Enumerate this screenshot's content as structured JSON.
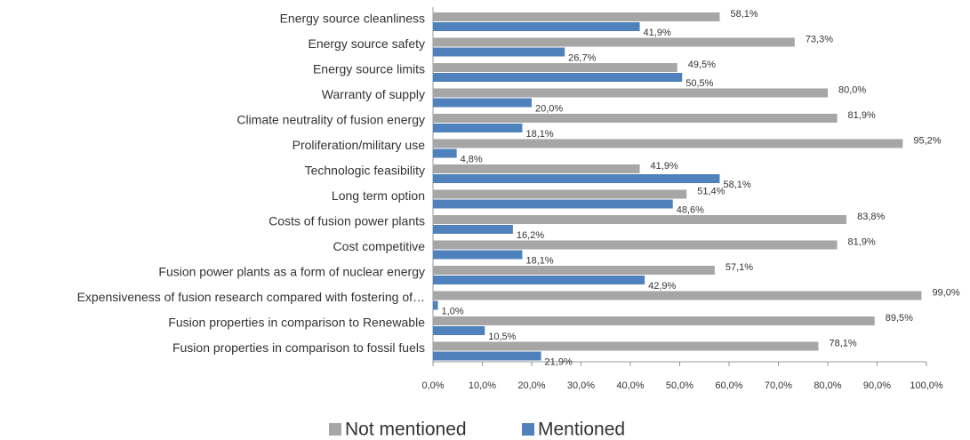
{
  "chart_data": {
    "type": "bar",
    "orientation": "horizontal",
    "categories": [
      "Energy source cleanliness",
      "Energy source safety",
      "Energy source limits",
      "Warranty of supply",
      "Climate neutrality of fusion energy",
      "Proliferation/military use",
      "Technologic feasibility",
      "Long term option",
      "Costs of fusion power plants",
      "Cost competitive",
      "Fusion power plants as a form of nuclear energy",
      "Expensiveness of fusion research compared with fostering of…",
      "Fusion properties in comparison to Renewable",
      "Fusion properties in comparison to fossil fuels"
    ],
    "series": [
      {
        "name": "Not mentioned",
        "color": "#a6a6a6",
        "values": [
          58.1,
          73.3,
          49.5,
          80.0,
          81.9,
          95.2,
          41.9,
          51.4,
          83.8,
          81.9,
          57.1,
          99.0,
          89.5,
          78.1
        ],
        "value_labels": [
          "58,1%",
          "73,3%",
          "49,5%",
          "80,0%",
          "81,9%",
          "95,2%",
          "41,9%",
          "51,4%",
          "83,8%",
          "81,9%",
          "57,1%",
          "99,0%",
          "89,5%",
          "78,1%"
        ]
      },
      {
        "name": "Mentioned",
        "color": "#4f81bd",
        "values": [
          41.9,
          26.7,
          50.5,
          20.0,
          18.1,
          4.8,
          58.1,
          48.6,
          16.2,
          18.1,
          42.9,
          1.0,
          10.5,
          21.9
        ],
        "value_labels": [
          "41,9%",
          "26,7%",
          "50,5%",
          "20,0%",
          "18,1%",
          "4,8%",
          "58,1%",
          "48,6%",
          "16,2%",
          "18,1%",
          "42,9%",
          "1,0%",
          "10,5%",
          "21,9%"
        ]
      }
    ],
    "xlim": [
      0,
      100
    ],
    "xticks": [
      {
        "value": 0,
        "label": "0,0%"
      },
      {
        "value": 10,
        "label": "10,0%"
      },
      {
        "value": 20,
        "label": "20,0%"
      },
      {
        "value": 30,
        "label": "30,0%"
      },
      {
        "value": 40,
        "label": "40,0%"
      },
      {
        "value": 50,
        "label": "50,0%"
      },
      {
        "value": 60,
        "label": "60,0%"
      },
      {
        "value": 70,
        "label": "70,0%"
      },
      {
        "value": 80,
        "label": "80,0%"
      },
      {
        "value": 90,
        "label": "90,0%"
      },
      {
        "value": 100,
        "label": "100,0%"
      }
    ],
    "legend": "bottom"
  }
}
